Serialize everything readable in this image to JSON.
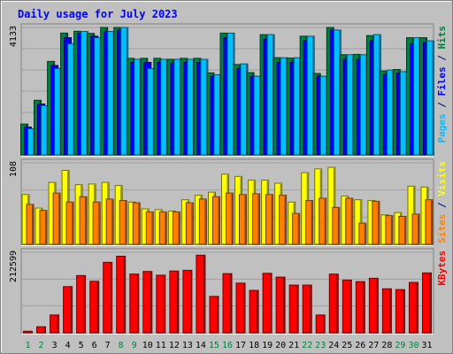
{
  "chart_data": {
    "type": "bar",
    "title": "Daily usage for July 2023",
    "categories": [
      "1",
      "2",
      "3",
      "4",
      "5",
      "6",
      "7",
      "8",
      "9",
      "10",
      "11",
      "12",
      "13",
      "14",
      "15",
      "16",
      "17",
      "18",
      "19",
      "20",
      "21",
      "22",
      "23",
      "24",
      "25",
      "26",
      "27",
      "28",
      "29",
      "30",
      "31"
    ],
    "weekend_days": [
      1,
      2,
      8,
      9,
      15,
      16,
      22,
      23,
      29,
      30
    ],
    "panels": [
      {
        "id": "hits",
        "ymax": 4133,
        "ymax_label": "4133",
        "axis_label_parts": [
          {
            "text": "Pages",
            "color": "#00C0FF"
          },
          {
            "text": " / ",
            "color": "#000080"
          },
          {
            "text": "Files",
            "color": "#0000FF"
          },
          {
            "text": " / ",
            "color": "#000080"
          },
          {
            "text": "Hits",
            "color": "#008040"
          }
        ],
        "series": [
          {
            "name": "Hits",
            "color": "#008040",
            "values": [
              1000,
              1770,
              3030,
              3950,
              4010,
              3940,
              4133,
              4133,
              3130,
              3130,
              3130,
              3100,
              3130,
              3130,
              2660,
              3950,
              2930,
              2670,
              3900,
              3150,
              3140,
              3850,
              2640,
              4133,
              3250,
              3260,
              3870,
              2720,
              2770,
              3800,
              3800
            ]
          },
          {
            "name": "Files",
            "color": "#0000FF",
            "values": [
              900,
              1650,
              2900,
              3800,
              3950,
              3850,
              4000,
              4050,
              3000,
              3000,
              3000,
              2980,
              3000,
              3000,
              2550,
              3800,
              2800,
              2550,
              3750,
              3000,
              3000,
              3700,
              2550,
              4050,
              3100,
              3100,
              3700,
              2600,
              2650,
              3600,
              3650
            ]
          },
          {
            "name": "Pages",
            "color": "#00C0FF",
            "values": [
              850,
              1600,
              2800,
              3600,
              4000,
              3800,
              4000,
              4133,
              3100,
              2800,
              3100,
              3100,
              3100,
              3100,
              2600,
              3950,
              2950,
              2550,
              3900,
              3150,
              3150,
              3850,
              2550,
              4050,
              3250,
              3250,
              3900,
              2750,
              2700,
              3800,
              3700
            ]
          }
        ]
      },
      {
        "id": "visits",
        "ymax": 108,
        "ymax_label": "108",
        "axis_label_parts": [
          {
            "text": "Sites",
            "color": "#FF8000"
          },
          {
            "text": " / ",
            "color": "#000080"
          },
          {
            "text": "Visits",
            "color": "#FFFF00"
          }
        ],
        "series": [
          {
            "name": "Visits",
            "color": "#FFFF00",
            "values": [
              66,
              48,
              82,
              98,
              79,
              80,
              82,
              78,
              56,
              47,
              46,
              44,
              59,
              65,
              69,
              93,
              90,
              85,
              85,
              81,
              56,
              95,
              100,
              102,
              64,
              59,
              58,
              39,
              42,
              77,
              76
            ]
          },
          {
            "name": "Sites",
            "color": "#FF8000",
            "values": [
              53,
              45,
              68,
              56,
              63,
              56,
              60,
              58,
              55,
              43,
              43,
              43,
              55,
              60,
              63,
              68,
              66,
              67,
              66,
              65,
              41,
              58,
              61,
              49,
              61,
              28,
              57,
              38,
              37,
              40,
              59
            ]
          }
        ]
      },
      {
        "id": "kbytes",
        "ymax": 212599,
        "ymax_label": "212599",
        "axis_label_parts": [
          {
            "text": "KBytes",
            "color": "#FF0000"
          }
        ],
        "series": [
          {
            "name": "KBytes",
            "color": "#FF0000",
            "values": [
              4000,
              16000,
              47000,
              122000,
              151000,
              136000,
              186000,
              202000,
              155000,
              162000,
              152000,
              163000,
              165000,
              205000,
              96000,
              156000,
              131000,
              112000,
              157000,
              147000,
              126000,
              126000,
              47000,
              155000,
              139000,
              135000,
              144000,
              116000,
              114000,
              133000,
              158000
            ]
          }
        ]
      }
    ]
  }
}
